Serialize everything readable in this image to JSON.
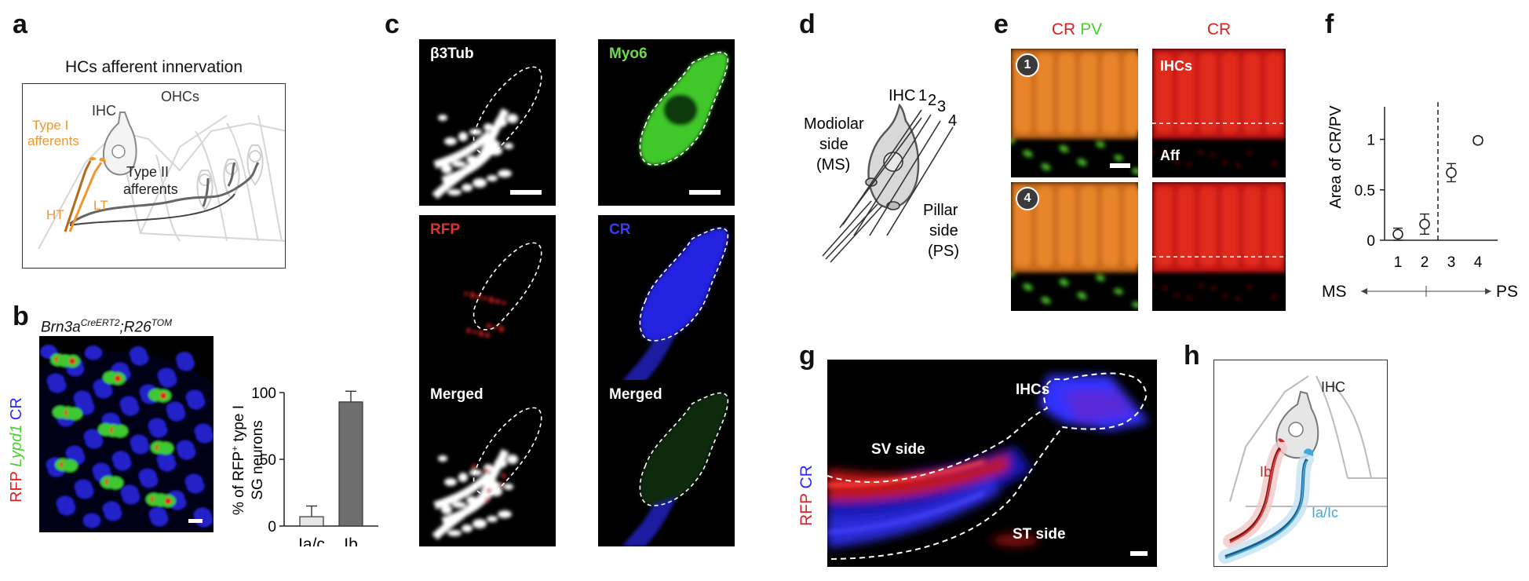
{
  "panels": {
    "a": {
      "letter": "a",
      "title": "HCs afferent innervation",
      "labels": {
        "ohcs": "OHCs",
        "ihc": "IHC",
        "type1": "Type I",
        "type1b": "afferents",
        "ht": "HT",
        "lt": "LT",
        "type2": "Type II",
        "type2b": "afferents"
      }
    },
    "b": {
      "letter": "b",
      "genotype_part1": "Brn3a",
      "genotype_sup1": "CreERT2",
      "genotype_sep": ";R26",
      "genotype_sup2": "TOM",
      "stain": {
        "rfp": "RFP",
        "lypd1": "Lypd1",
        "cr": "CR"
      },
      "chart_data": {
        "type": "bar",
        "categories": [
          "Ia/c",
          "Ib"
        ],
        "values": [
          7,
          93
        ],
        "errors": [
          8,
          8
        ],
        "ylim": [
          0,
          100
        ],
        "yticks": [
          "0",
          "50",
          "100"
        ],
        "ylabel_line1": "% of RFP",
        "ylabel_sup": "+",
        "ylabel_line1b": " type I",
        "ylabel_line2": "SG neurons",
        "colors": [
          "#e6e6e6",
          "#6e6e6e"
        ]
      }
    },
    "c": {
      "letter": "c",
      "tiles": [
        {
          "label": "β3Tub",
          "color": "#ffffff"
        },
        {
          "label": "Myo6",
          "color": "#6bdc4a"
        },
        {
          "label": "RFP",
          "color": "#e03030"
        },
        {
          "label": "CR",
          "color": "#3a3aff"
        },
        {
          "label": "Merged",
          "color": "#ffffff"
        },
        {
          "label": "Merged",
          "color": "#ffffff"
        }
      ]
    },
    "d": {
      "letter": "d",
      "labels": {
        "ihc": "IHC",
        "n1": "1",
        "n2": "2",
        "n3": "3",
        "n4": "4",
        "modiolar": "Modiolar",
        "side": "side",
        "ms": "(MS)",
        "pillar": "Pillar",
        "side2": "side",
        "ps": "(PS)"
      }
    },
    "e": {
      "letter": "e",
      "col1_cr": "CR",
      "col1_pv": "PV",
      "col2_cr": "CR",
      "badge1": "1",
      "badge4": "4",
      "ihcs": "IHCs",
      "aff": "Aff"
    },
    "f": {
      "letter": "f",
      "chart_data": {
        "type": "scatter",
        "x": [
          1,
          2,
          3,
          4
        ],
        "y": [
          0.06,
          0.16,
          0.67,
          0.99
        ],
        "err": [
          0.06,
          0.1,
          0.09,
          0.03
        ],
        "xticks": [
          "1",
          "2",
          "3",
          "4"
        ],
        "yticks": [
          "0",
          "0.5",
          "1"
        ],
        "ylim": [
          0,
          1.2
        ],
        "ylabel": "Area of CR/PV",
        "ms": "MS",
        "ps": "PS"
      }
    },
    "g": {
      "letter": "g",
      "rfp": "RFP",
      "cr": "CR",
      "ihcs": "IHCs",
      "sv": "SV side",
      "st": "ST side"
    },
    "h": {
      "letter": "h",
      "ihc": "IHC",
      "ib": "Ib",
      "iaic": "Ia/Ic"
    }
  },
  "colors": {
    "orange": "#f0962e",
    "red": "#e02020",
    "green": "#6bdc4a",
    "blue": "#2a2aff",
    "lightblue": "#3fa9dc",
    "darkred": "#b83030"
  }
}
